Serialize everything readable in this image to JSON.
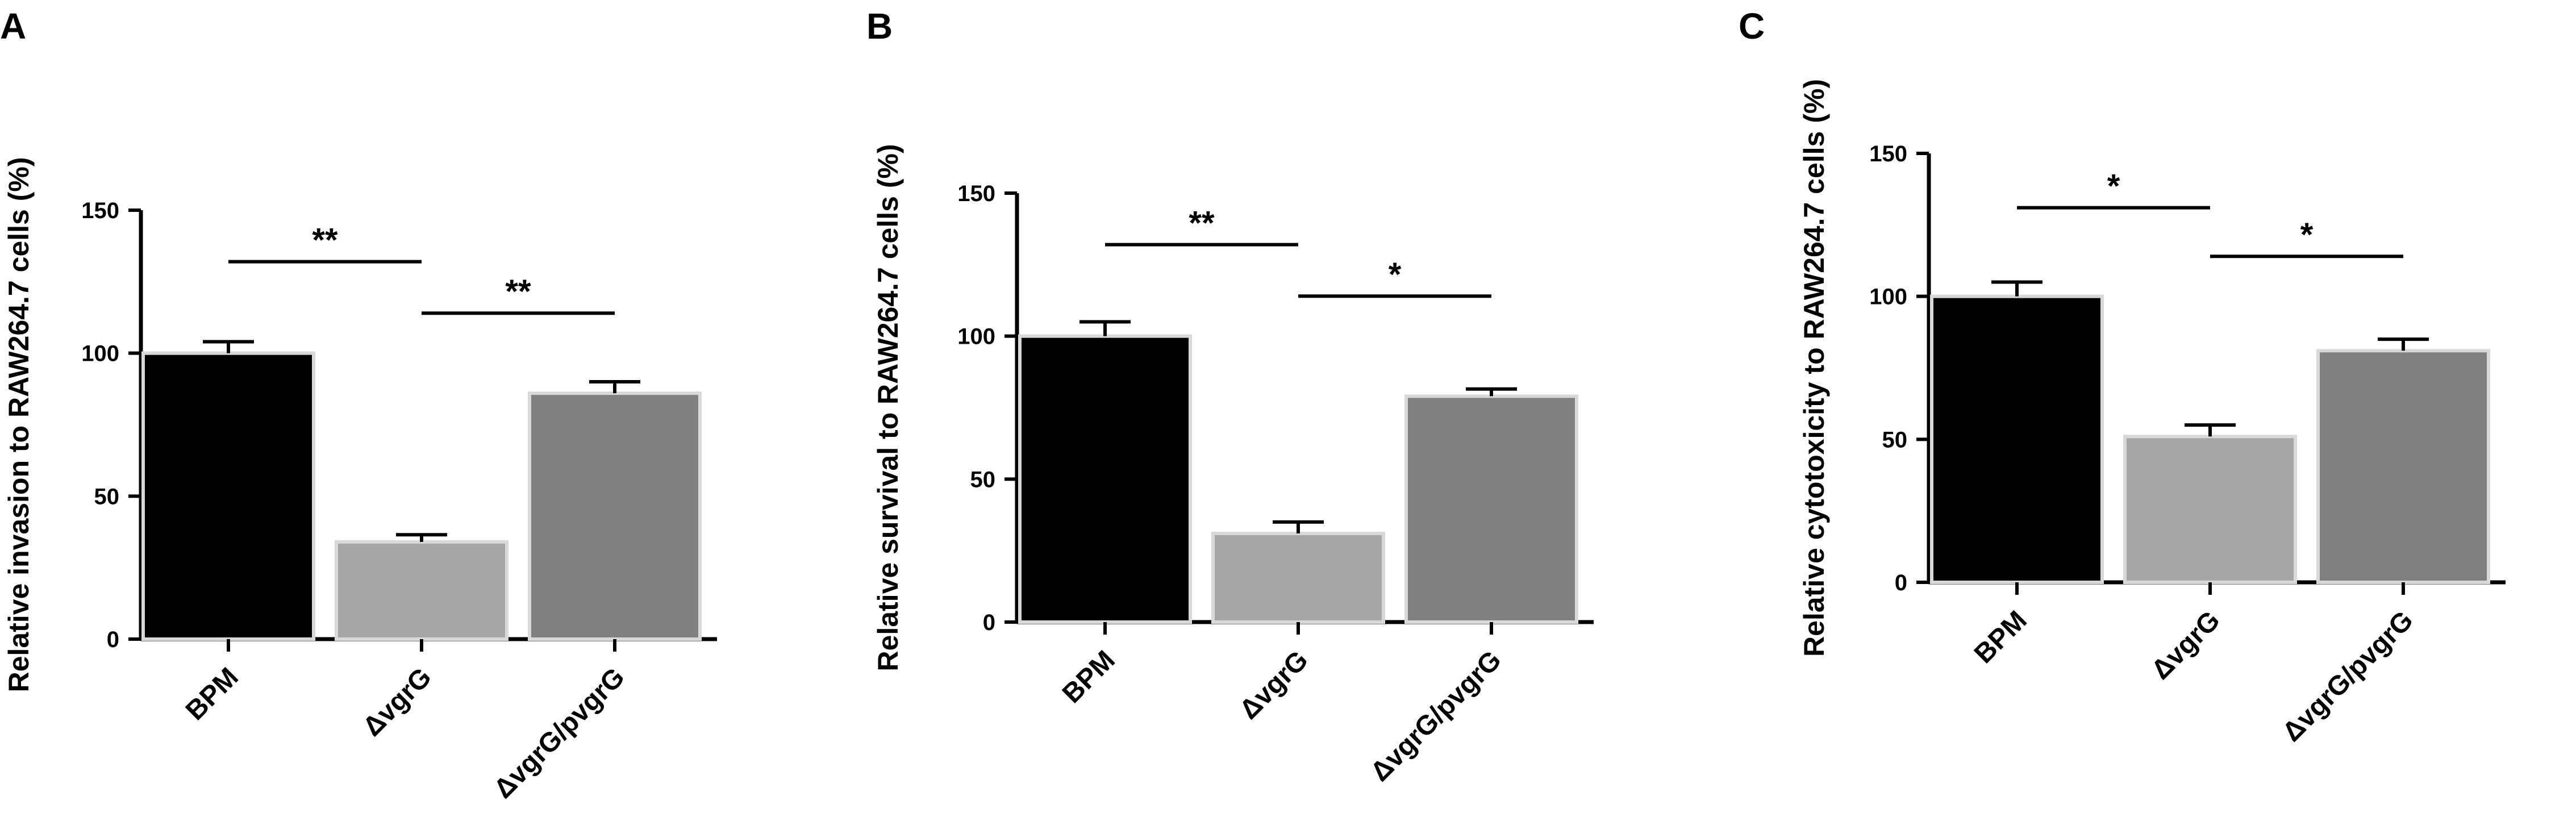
{
  "chart_data": [
    {
      "type": "bar",
      "panel": "A",
      "ylabel": "Relative invasion to RAW264.7 cells (%)",
      "categories": [
        "BPM",
        "ΔvgrG",
        "ΔvgrG/pvgrG"
      ],
      "values": [
        100,
        34,
        86
      ],
      "errors": [
        4,
        2.5,
        4
      ],
      "colors": [
        "#000000",
        "#a6a6a6",
        "#808080"
      ],
      "ylim": [
        0,
        150
      ],
      "yticks": [
        "0",
        "50",
        "100",
        "150"
      ],
      "significance": [
        {
          "from": 0,
          "to": 1,
          "label": "**",
          "y": 132
        },
        {
          "from": 1,
          "to": 2,
          "label": "**",
          "y": 114
        }
      ]
    },
    {
      "type": "bar",
      "panel": "B",
      "ylabel": "Relative survival to RAW264.7 cells (%)",
      "categories": [
        "BPM",
        "ΔvgrG",
        "ΔvgrG/pvgrG"
      ],
      "values": [
        100,
        31,
        79
      ],
      "errors": [
        5,
        4,
        2.5
      ],
      "colors": [
        "#000000",
        "#a6a6a6",
        "#808080"
      ],
      "ylim": [
        0,
        150
      ],
      "yticks": [
        "0",
        "50",
        "100",
        "150"
      ],
      "significance": [
        {
          "from": 0,
          "to": 1,
          "label": "**",
          "y": 132
        },
        {
          "from": 1,
          "to": 2,
          "label": "*",
          "y": 114
        }
      ]
    },
    {
      "type": "bar",
      "panel": "C",
      "ylabel": "Relative cytotoxicity to RAW264.7 cells (%)",
      "categories": [
        "BPM",
        "ΔvgrG",
        "ΔvgrG/pvgrG"
      ],
      "values": [
        100,
        51,
        81
      ],
      "errors": [
        5,
        4,
        4
      ],
      "colors": [
        "#000000",
        "#a6a6a6",
        "#808080"
      ],
      "ylim": [
        0,
        150
      ],
      "yticks": [
        "0",
        "50",
        "100",
        "150"
      ],
      "significance": [
        {
          "from": 0,
          "to": 1,
          "label": "*",
          "y": 131
        },
        {
          "from": 1,
          "to": 2,
          "label": "*",
          "y": 114
        }
      ]
    }
  ]
}
